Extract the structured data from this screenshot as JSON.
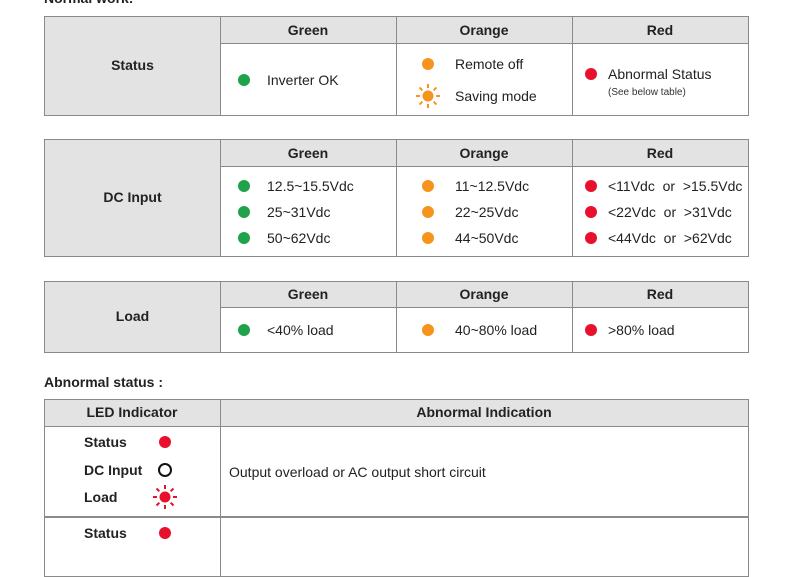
{
  "normal_title": "Normal work:",
  "tables": [
    {
      "label": "Status",
      "headers": [
        "Green",
        "Orange",
        "Red"
      ],
      "cells": [
        [
          {
            "text": "Inverter OK"
          }
        ],
        [
          {
            "text": "Remote off"
          },
          {
            "text": "Saving mode"
          }
        ],
        [
          {
            "text": "Abnormal Status",
            "sub": "(See below table)"
          }
        ]
      ]
    },
    {
      "label": "DC Input",
      "headers": [
        "Green",
        "Orange",
        "Red"
      ],
      "cells": [
        [
          {
            "text": "12.5~15.5Vdc"
          },
          {
            "text": "25~31Vdc"
          },
          {
            "text": "50~62Vdc"
          }
        ],
        [
          {
            "text": "11~12.5Vdc"
          },
          {
            "text": "22~25Vdc"
          },
          {
            "text": "44~50Vdc"
          }
        ],
        [
          {
            "text": "<11Vdc  or  >15.5Vdc"
          },
          {
            "text": "<22Vdc  or  >31Vdc"
          },
          {
            "text": "<44Vdc  or  >62Vdc"
          }
        ]
      ]
    },
    {
      "label": "Load",
      "headers": [
        "Green",
        "Orange",
        "Red"
      ],
      "cells": [
        [
          {
            "text": "<40% load"
          }
        ],
        [
          {
            "text": "40~80% load"
          }
        ],
        [
          {
            "text": ">80% load"
          }
        ]
      ]
    }
  ],
  "abnormal": {
    "title": "Abnormal status :",
    "headers": [
      "LED Indicator",
      "Abnormal Indication"
    ],
    "rows": [
      {
        "indicators": [
          "Status",
          "DC Input",
          "Load"
        ],
        "text": "Output overload or AC output short circuit"
      },
      {
        "indicators": [
          "Status"
        ],
        "text": ""
      }
    ]
  }
}
